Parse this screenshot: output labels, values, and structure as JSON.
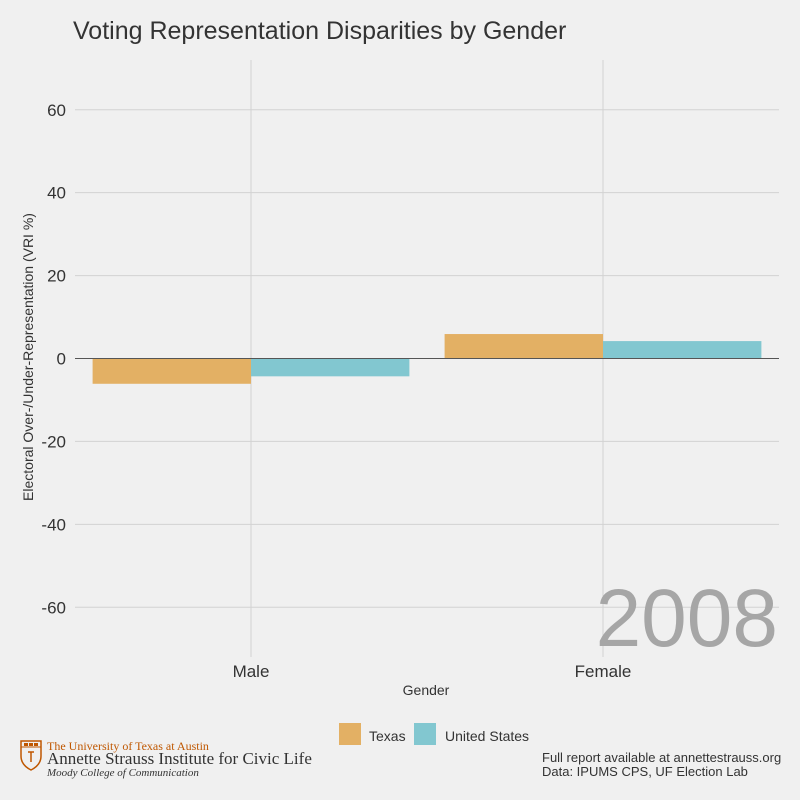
{
  "chart_data": {
    "type": "bar",
    "title": "Voting Representation Disparities by Gender",
    "xlabel": "Gender",
    "ylabel": "Electoral Over-/Under-Representation (VRI %)",
    "categories": [
      "Male",
      "Female"
    ],
    "series": [
      {
        "name": "Texas",
        "values": [
          -6.1,
          5.9
        ],
        "color": "#e3b064"
      },
      {
        "name": "United States",
        "values": [
          -4.3,
          4.2
        ],
        "color": "#82c7d0"
      }
    ],
    "ylim": [
      -72,
      72
    ],
    "yticks": [
      60,
      40,
      20,
      0,
      -20,
      -40,
      -60
    ],
    "grid": true,
    "legend_position": "bottom",
    "annotation": "2008"
  },
  "footer": {
    "line1": "Full report available at annettestrauss.org",
    "line2": "Data: IPUMS CPS, UF Election Lab"
  },
  "logo": {
    "university": "The University of Texas at Austin",
    "institute": "Annette Strauss Institute for Civic Life",
    "college": "Moody College of Communication"
  },
  "colors": {
    "background": "#f0f0f0",
    "grid": "#d2d2d2",
    "zero_line": "#555555",
    "texas": "#e3b064",
    "united_states": "#82c7d0",
    "brand_orange": "#bf5700"
  }
}
